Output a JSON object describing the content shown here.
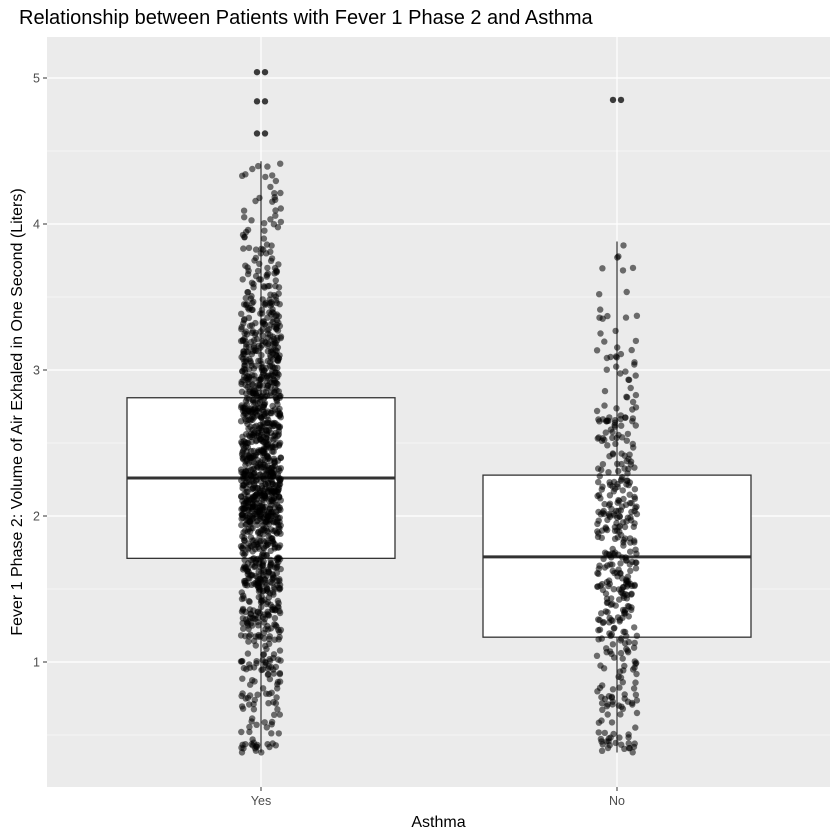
{
  "chart_data": {
    "type": "boxplot",
    "title": "Relationship between Patients with Fever 1 Phase 2 and Asthma",
    "xlabel": "Asthma",
    "ylabel": "Fever 1 Phase 2: Volume of Air Exhaled in One Second (Liters)",
    "categories": [
      "Yes",
      "No"
    ],
    "y_ticks": [
      "1",
      "2",
      "3",
      "4",
      "5"
    ],
    "ylim": [
      0.2,
      5.3
    ],
    "grid": true,
    "background": "#ebebeb",
    "point_color": "#000000",
    "point_opacity": 0.55,
    "boxes": [
      {
        "category": "Yes",
        "whisker_low": 0.38,
        "q1": 1.71,
        "median": 2.26,
        "q3": 2.81,
        "whisker_high": 4.43,
        "outliers": [
          4.62,
          4.84,
          5.04
        ],
        "n_points": 1300
      },
      {
        "category": "No",
        "whisker_low": 0.38,
        "q1": 1.17,
        "median": 1.72,
        "q3": 2.28,
        "whisker_high": 3.88,
        "outliers": [
          4.85
        ],
        "n_points": 420
      }
    ]
  }
}
